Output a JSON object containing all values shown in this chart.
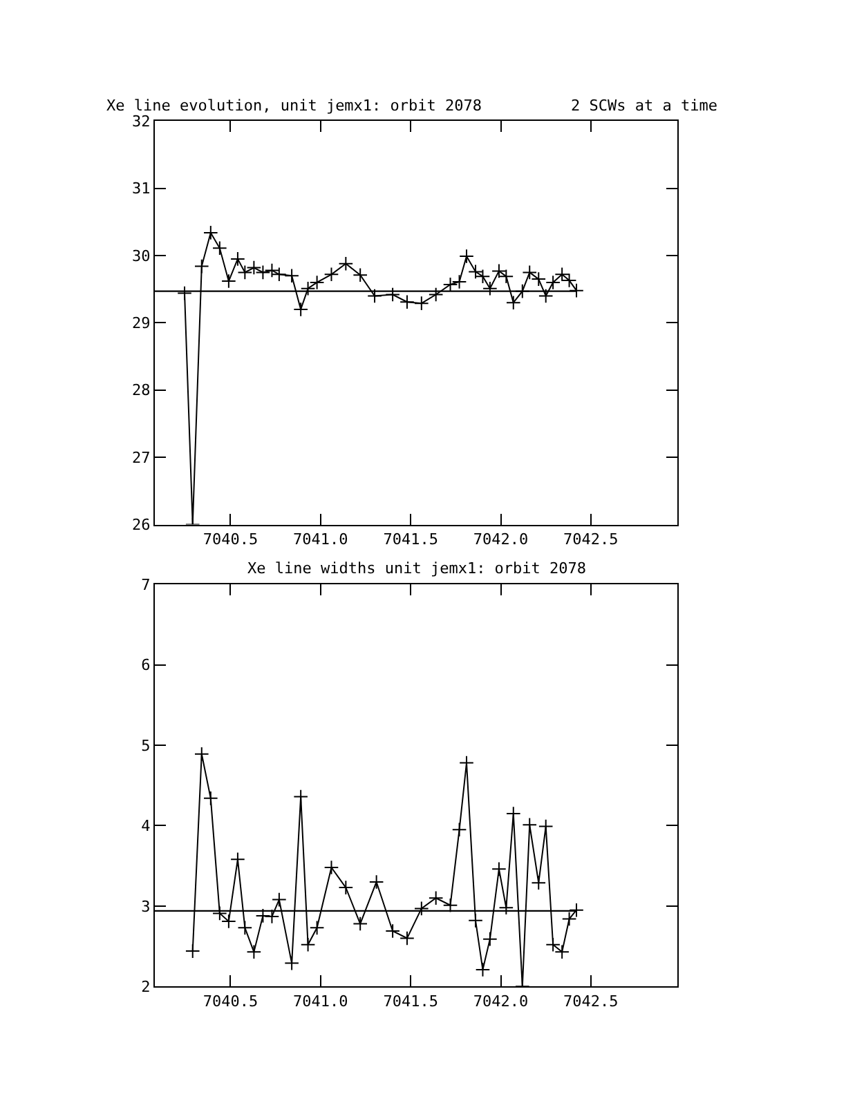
{
  "chart_data": [
    {
      "type": "line",
      "title": "Xe line evolution, unit jemx1: orbit 2078",
      "annotations": [
        "2 SCWs at a time"
      ],
      "x": [
        7040.245,
        7040.29,
        7040.34,
        7040.39,
        7040.44,
        7040.49,
        7040.54,
        7040.58,
        7040.63,
        7040.68,
        7040.73,
        7040.77,
        7040.84,
        7040.89,
        7040.93,
        7040.98,
        7041.06,
        7041.14,
        7041.22,
        7041.3,
        7041.4,
        7041.48,
        7041.56,
        7041.64,
        7041.72,
        7041.77,
        7041.81,
        7041.86,
        7041.9,
        7041.94,
        7041.99,
        7042.03,
        7042.07,
        7042.12,
        7042.16,
        7042.21,
        7042.25,
        7042.29,
        7042.34,
        7042.38,
        7042.42
      ],
      "series": [
        {
          "color": "#000000",
          "values": [
            29.44,
            26.0,
            29.84,
            30.34,
            30.11,
            29.62,
            29.95,
            29.75,
            29.82,
            29.75,
            29.78,
            29.72,
            29.7,
            29.2,
            29.51,
            29.6,
            29.72,
            29.88,
            29.71,
            29.4,
            29.42,
            29.31,
            29.29,
            29.42,
            29.57,
            29.61,
            29.99,
            29.76,
            29.69,
            29.51,
            29.77,
            29.69,
            29.3,
            29.47,
            29.75,
            29.65,
            29.4,
            29.6,
            29.72,
            29.63,
            29.48
          ]
        }
      ],
      "ref_lines": [
        {
          "axis": "y",
          "value": 29.47,
          "color": "#000000"
        }
      ],
      "xlim": [
        7040.08,
        7042.98
      ],
      "xticks": [
        {
          "value": 7040.5,
          "label": "7040.5"
        },
        {
          "value": 7041.0,
          "label": "7041.0"
        },
        {
          "value": 7041.5,
          "label": "7041.5"
        },
        {
          "value": 7042.0,
          "label": "7042.0"
        },
        {
          "value": 7042.5,
          "label": "7042.5"
        }
      ],
      "ylim": [
        26,
        32
      ],
      "yticks": [
        26,
        27,
        28,
        29,
        30,
        31,
        32
      ],
      "marker": "cross",
      "line_style": "solid"
    },
    {
      "type": "line",
      "title": "Xe line widths unit jemx1: orbit 2078",
      "x": [
        7040.29,
        7040.34,
        7040.39,
        7040.44,
        7040.49,
        7040.54,
        7040.58,
        7040.63,
        7040.68,
        7040.73,
        7040.77,
        7040.84,
        7040.89,
        7040.93,
        7040.98,
        7041.06,
        7041.14,
        7041.22,
        7041.31,
        7041.4,
        7041.48,
        7041.56,
        7041.64,
        7041.72,
        7041.77,
        7041.81,
        7041.86,
        7041.9,
        7041.94,
        7041.99,
        7042.03,
        7042.07,
        7042.12,
        7042.16,
        7042.21,
        7042.25,
        7042.29,
        7042.34,
        7042.38,
        7042.42
      ],
      "series": [
        {
          "color": "#000000",
          "values": [
            2.44,
            4.89,
            4.34,
            2.91,
            2.81,
            3.58,
            2.73,
            2.43,
            2.88,
            2.87,
            3.08,
            2.29,
            4.36,
            2.52,
            2.73,
            3.48,
            3.23,
            2.78,
            3.3,
            2.69,
            2.6,
            2.97,
            3.1,
            3.01,
            3.95,
            4.78,
            2.82,
            2.21,
            2.59,
            3.46,
            2.98,
            4.15,
            2.0,
            4.01,
            3.29,
            3.99,
            2.52,
            2.43,
            2.84,
            2.95
          ]
        }
      ],
      "ref_lines": [
        {
          "axis": "y",
          "value": 2.94,
          "color": "#000000"
        }
      ],
      "xlim": [
        7040.08,
        7042.98
      ],
      "xticks": [
        {
          "value": 7040.5,
          "label": "7040.5"
        },
        {
          "value": 7041.0,
          "label": "7041.0"
        },
        {
          "value": 7041.5,
          "label": "7041.5"
        },
        {
          "value": 7042.0,
          "label": "7042.0"
        },
        {
          "value": 7042.5,
          "label": "7042.5"
        }
      ],
      "ylim": [
        2,
        7
      ],
      "yticks": [
        2,
        3,
        4,
        5,
        6,
        7
      ],
      "marker": "cross",
      "line_style": "solid"
    }
  ]
}
